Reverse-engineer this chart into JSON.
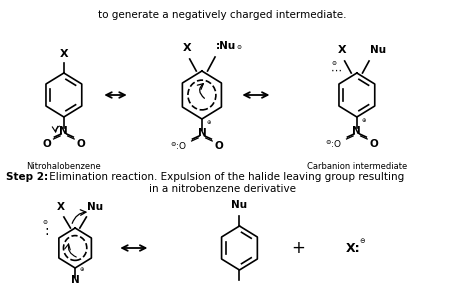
{
  "bg_color": "#ffffff",
  "top_text": "to generate a negatively charged intermediate.",
  "step2_bold": "Step 2:",
  "step2_rest": " Elimination reaction. Expulsion of the halide leaving group resulting",
  "step2_line2": "in a nitrobenzene derivative",
  "label1": "Nitrohalobenzene",
  "label2": "Carbanion intermediate",
  "fig_width": 4.74,
  "fig_height": 2.91,
  "dpi": 100
}
